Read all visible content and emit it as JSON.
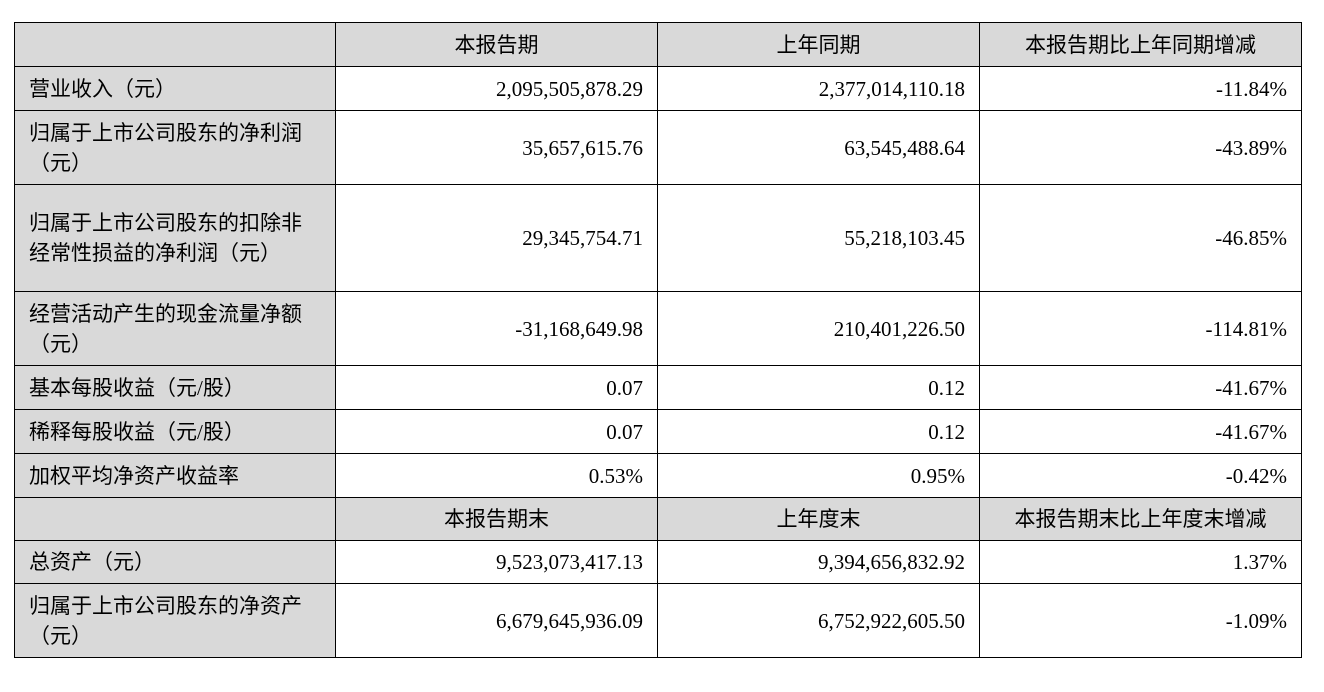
{
  "table": {
    "header": [
      "",
      "本报告期",
      "上年同期",
      "本报告期比上年同期增减"
    ],
    "rows": [
      [
        "营业收入（元）",
        "2,095,505,878.29",
        "2,377,014,110.18",
        "-11.84%"
      ],
      [
        "归属于上市公司股东的净利润（元）",
        "35,657,615.76",
        "63,545,488.64",
        "-43.89%"
      ],
      [
        "归属于上市公司股东的扣除非经常性损益的净利润（元）",
        "29,345,754.71",
        "55,218,103.45",
        "-46.85%"
      ],
      [
        "经营活动产生的现金流量净额（元）",
        "-31,168,649.98",
        "210,401,226.50",
        "-114.81%"
      ],
      [
        "基本每股收益（元/股）",
        "0.07",
        "0.12",
        "-41.67%"
      ],
      [
        "稀释每股收益（元/股）",
        "0.07",
        "0.12",
        "-41.67%"
      ],
      [
        "加权平均净资产收益率",
        "0.53%",
        "0.95%",
        "-0.42%"
      ]
    ],
    "header2": [
      "",
      "本报告期末",
      "上年度末",
      "本报告期末比上年度末增减"
    ],
    "rows2": [
      [
        "总资产（元）",
        "9,523,073,417.13",
        "9,394,656,832.92",
        "1.37%"
      ],
      [
        "归属于上市公司股东的净资产（元）",
        "6,679,645,936.09",
        "6,752,922,605.50",
        "-1.09%"
      ]
    ]
  }
}
